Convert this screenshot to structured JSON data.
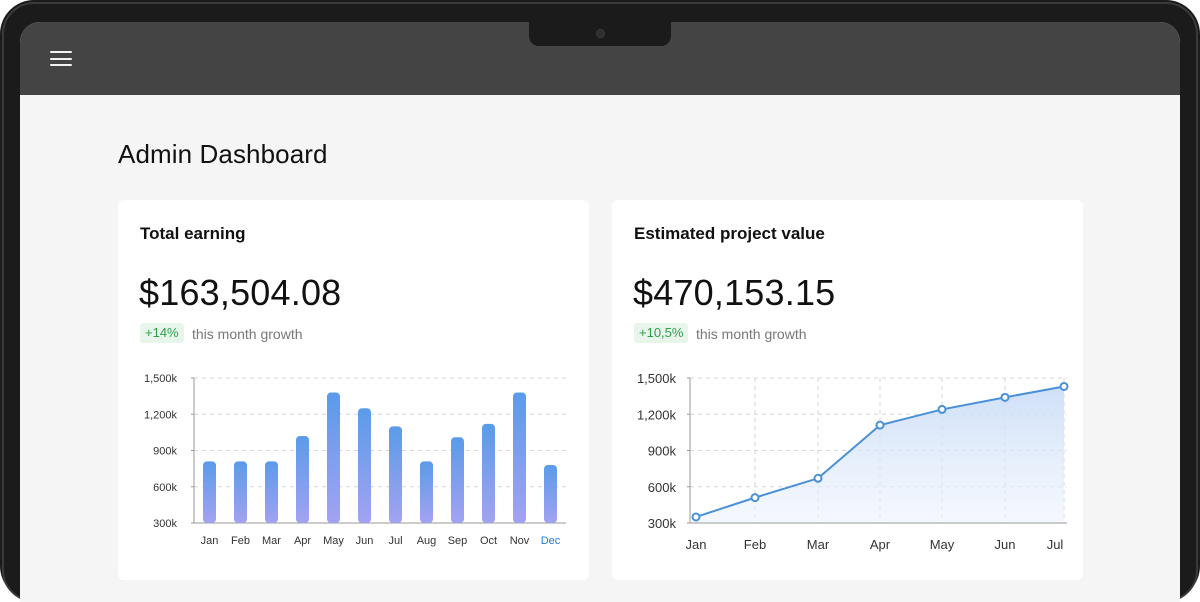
{
  "header": {
    "menu_icon": "hamburger-menu-icon"
  },
  "page": {
    "title": "Admin Dashboard"
  },
  "cards": [
    {
      "title": "Total earning",
      "value": "$163,504.08",
      "growth": "+14%",
      "growth_label": "this month growth"
    },
    {
      "title": "Estimated project value",
      "value": "$470,153.15",
      "growth": "+10,5%",
      "growth_label": "this month growth"
    }
  ],
  "colors": {
    "bar_top": "#5a9be9",
    "bar_bottom": "#a3a2f2",
    "line": "#4a90d9",
    "highlight_tick": "#1e7ad6",
    "growth_green": "#2f9e4a"
  },
  "chart_data": [
    {
      "type": "bar",
      "categories": [
        "Jan",
        "Feb",
        "Mar",
        "Apr",
        "May",
        "Jun",
        "Jul",
        "Aug",
        "Sep",
        "Oct",
        "Nov",
        "Dec"
      ],
      "values": [
        810,
        810,
        810,
        1020,
        1380,
        1250,
        1100,
        810,
        1010,
        1120,
        1380,
        780
      ],
      "y_ticks": [
        "300k",
        "600k",
        "900k",
        "1,200k",
        "1,500k"
      ],
      "ylim": [
        300,
        1500
      ],
      "highlighted_category": "Dec",
      "grid": true
    },
    {
      "type": "area",
      "categories": [
        "Jan",
        "Feb",
        "Mar",
        "Apr",
        "May",
        "Jun",
        "Jul"
      ],
      "values": [
        350,
        510,
        670,
        1110,
        1240,
        1340,
        1430
      ],
      "y_ticks": [
        "300k",
        "600k",
        "900k",
        "1,200k",
        "1,500k"
      ],
      "ylim": [
        300,
        1500
      ],
      "grid": true
    }
  ]
}
